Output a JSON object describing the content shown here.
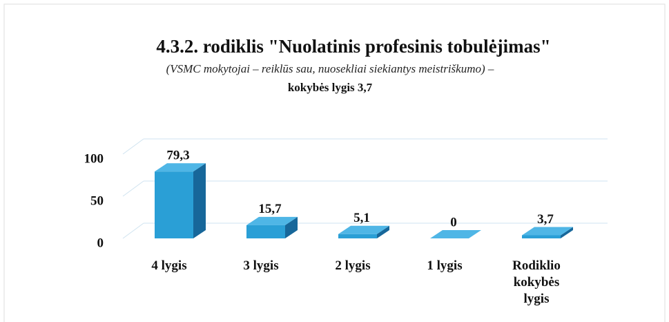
{
  "chart_data": {
    "type": "bar3d",
    "title": "4.3.2. rodiklis \"Nuolatinis profesinis tobulėjimas\"",
    "subtitle": "(VSMC mokytojai – reiklūs sau, nuosekliai siekiantys meistriškumo) –",
    "note": "kokybės lygis 3,7",
    "categories": [
      "4 lygis",
      "3 lygis",
      "2 lygis",
      "1 lygis",
      "Rodiklio kokybės lygis"
    ],
    "values": [
      79.3,
      15.7,
      5.1,
      0,
      3.7
    ],
    "value_labels": [
      "79,3",
      "15,7",
      "5,1",
      "0",
      "3,7"
    ],
    "color": "#2a9fd6",
    "ylim": [
      0,
      100
    ],
    "yticks": [
      0,
      50,
      100
    ],
    "grid": true
  }
}
